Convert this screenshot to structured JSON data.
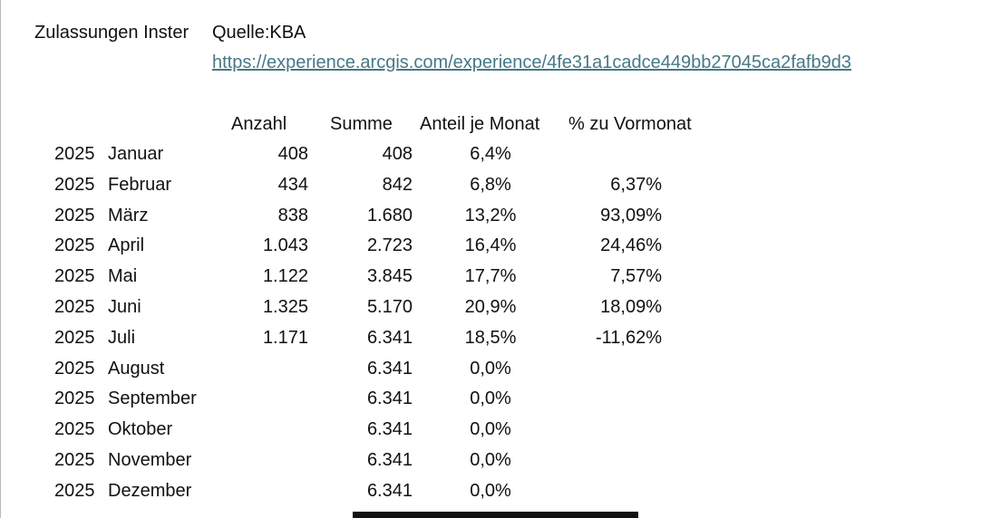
{
  "header": {
    "title": "Zulassungen Inster",
    "source": "Quelle:KBA",
    "link": "https://experience.arcgis.com/experience/4fe31a1cadce449bb27045ca2fafb9d3"
  },
  "table": {
    "columns": {
      "anzahl": "Anzahl",
      "summe": "Summe",
      "anteil": "Anteil je Monat",
      "vormonat": "% zu Vormonat"
    },
    "rows": [
      {
        "year": "2025",
        "month": "Januar",
        "anzahl": "408",
        "summe": "408",
        "anteil": "6,4%"
      },
      {
        "year": "2025",
        "month": "Februar",
        "anzahl": "434",
        "summe": "842",
        "anteil": "6,8%",
        "vormonat": "6,37%"
      },
      {
        "year": "2025",
        "month": "März",
        "anzahl": "838",
        "summe": "1.680",
        "anteil": "13,2%",
        "vormonat": "93,09%"
      },
      {
        "year": "2025",
        "month": "April",
        "anzahl": "1.043",
        "summe": "2.723",
        "anteil": "16,4%",
        "vormonat": "24,46%"
      },
      {
        "year": "2025",
        "month": "Mai",
        "anzahl": "1.122",
        "summe": "3.845",
        "anteil": "17,7%",
        "vormonat": "7,57%"
      },
      {
        "year": "2025",
        "month": "Juni",
        "anzahl": "1.325",
        "summe": "5.170",
        "anteil": "20,9%",
        "vormonat": "18,09%"
      },
      {
        "year": "2025",
        "month": "Juli",
        "anzahl": "1.171",
        "summe": "6.341",
        "anteil": "18,5%",
        "vormonat": "-11,62%"
      },
      {
        "year": "2025",
        "month": "August",
        "summe": "6.341",
        "anteil": "0,0%"
      },
      {
        "year": "2025",
        "month": "September",
        "summe": "6.341",
        "anteil": "0,0%"
      },
      {
        "year": "2025",
        "month": "Oktober",
        "summe": "6.341",
        "anteil": "0,0%"
      },
      {
        "year": "2025",
        "month": "November",
        "summe": "6.341",
        "anteil": "0,0%"
      },
      {
        "year": "2025",
        "month": "Dezember",
        "summe": "6.341",
        "anteil": "0,0%"
      }
    ]
  }
}
